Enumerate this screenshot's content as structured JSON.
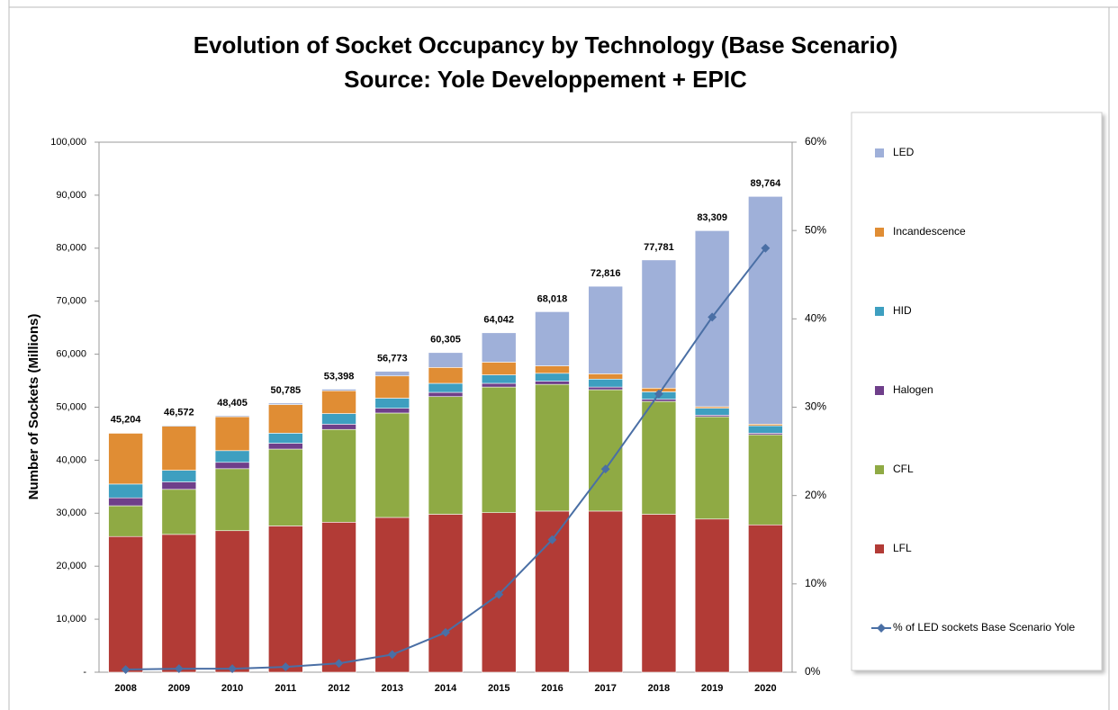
{
  "chart_data": {
    "type": "bar",
    "title": "Evolution of Socket Occupancy by Technology (Base Scenario)",
    "subtitle": "Source: Yole Developpement + EPIC",
    "y_label": "Number of Sockets (Millions)",
    "stacked": true,
    "categories": [
      "2008",
      "2009",
      "2010",
      "2011",
      "2012",
      "2013",
      "2014",
      "2015",
      "2016",
      "2017",
      "2018",
      "2019",
      "2020"
    ],
    "series": [
      {
        "name": "LFL",
        "color": "#b23b36",
        "values": [
          25600,
          26000,
          26700,
          27600,
          28300,
          29200,
          29800,
          30100,
          30400,
          30400,
          29800,
          28900,
          27800
        ]
      },
      {
        "name": "CFL",
        "color": "#8faa44",
        "values": [
          5800,
          8500,
          11700,
          14500,
          17500,
          19700,
          22200,
          23700,
          23900,
          22900,
          21300,
          19300,
          17000
        ]
      },
      {
        "name": "Halogen",
        "color": "#6f3f8a",
        "values": [
          1500,
          1400,
          1200,
          1100,
          1000,
          900,
          800,
          700,
          600,
          500,
          400,
          300,
          300
        ]
      },
      {
        "name": "HID",
        "color": "#3e9fc0",
        "values": [
          2600,
          2200,
          2200,
          1900,
          2000,
          1900,
          1700,
          1600,
          1500,
          1500,
          1400,
          1300,
          1400
        ]
      },
      {
        "name": "Incandescence",
        "color": "#e08d34",
        "values": [
          9600,
          8300,
          6400,
          5400,
          4300,
          4200,
          3000,
          2400,
          1400,
          1000,
          700,
          300,
          300
        ]
      },
      {
        "name": "LED",
        "color": "#9fb0d9",
        "values": [
          104,
          172,
          205,
          285,
          298,
          873,
          2805,
          5542,
          10218,
          16516,
          24181,
          33209,
          42964
        ]
      },
      {
        "name": "% of LED sockets Base Scenario Yole",
        "type": "line",
        "axis": "y2",
        "color": "#4a6fa5",
        "values": [
          0.3,
          0.4,
          0.4,
          0.6,
          1.0,
          2.0,
          4.5,
          8.8,
          15.0,
          23.0,
          31.5,
          40.2,
          48.0
        ]
      }
    ],
    "totals": {
      "values": [
        45204,
        46572,
        48405,
        50785,
        53398,
        56773,
        60305,
        64042,
        68018,
        72816,
        77781,
        83309,
        89764
      ],
      "value_labels": [
        "45,204",
        "46,572",
        "48,405",
        "50,785",
        "53,398",
        "56,773",
        "60,305",
        "64,042",
        "68,018",
        "72,816",
        "77,781",
        "83,309",
        "89,764"
      ]
    },
    "ylim": [
      0,
      100000
    ],
    "yticks": [
      {
        "value": 0,
        "label": "-"
      },
      {
        "value": 10000,
        "label": "10,000"
      },
      {
        "value": 20000,
        "label": "20,000"
      },
      {
        "value": 30000,
        "label": "30,000"
      },
      {
        "value": 40000,
        "label": "40,000"
      },
      {
        "value": 50000,
        "label": "50,000"
      },
      {
        "value": 60000,
        "label": "60,000"
      },
      {
        "value": 70000,
        "label": "70,000"
      },
      {
        "value": 80000,
        "label": "80,000"
      },
      {
        "value": 90000,
        "label": "90,000"
      },
      {
        "value": 100000,
        "label": "100,000"
      }
    ],
    "y2lim": [
      0,
      60
    ],
    "y2ticks": [
      {
        "value": 0,
        "label": "0%"
      },
      {
        "value": 10,
        "label": "10%"
      },
      {
        "value": 20,
        "label": "20%"
      },
      {
        "value": 30,
        "label": "30%"
      },
      {
        "value": 40,
        "label": "40%"
      },
      {
        "value": 50,
        "label": "50%"
      },
      {
        "value": 60,
        "label": "60%"
      }
    ],
    "legend": "right"
  }
}
